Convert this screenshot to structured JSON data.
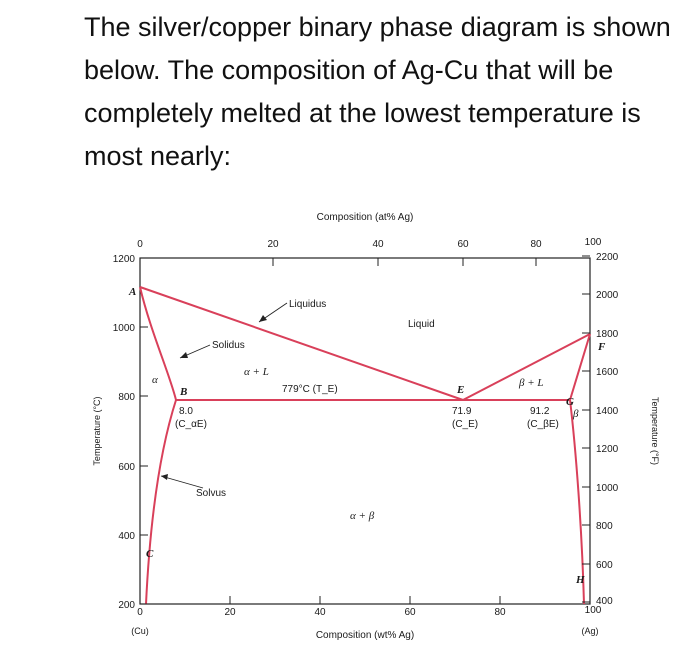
{
  "question": "The silver/copper binary phase diagram is shown below. The composition of Ag-Cu that will be completely melted at the lowest temperature is most nearly:",
  "diagram": {
    "top_axis_title": "Composition (at% Ag)",
    "bottom_axis_title": "Composition (wt% Ag)",
    "left_axis_title": "Temperature (°C)",
    "right_axis_title": "Temperature (°F)",
    "top_ticks": [
      "0",
      "20",
      "40",
      "60",
      "80",
      "100"
    ],
    "bottom_ticks": [
      "0",
      "20",
      "40",
      "60",
      "80",
      "100"
    ],
    "left_ticks": [
      "1200",
      "1000",
      "800",
      "600",
      "400",
      "200"
    ],
    "right_ticks": [
      "2200",
      "2000",
      "1800",
      "1600",
      "1400",
      "1200",
      "1000",
      "800",
      "600",
      "400"
    ],
    "left_end_label": "(Cu)",
    "right_end_label": "(Ag)",
    "regions": {
      "liquid": "Liquid",
      "alpha": "α",
      "alpha_plus_l": "α + L",
      "beta_plus_l": "β + L",
      "alpha_plus_beta": "α + β",
      "beta": "β"
    },
    "callouts": {
      "liquidus": "Liquidus",
      "solidus": "Solidus",
      "solvus": "Solvus"
    },
    "points": {
      "A": "A",
      "B": "B",
      "C": "C",
      "E": "E",
      "F": "F",
      "G": "G",
      "H": "H"
    },
    "eutectic_temp_label": "779°C (T_E)",
    "compositions": {
      "b_value": "8.0",
      "b_sub": "(C_αE)",
      "e_value": "71.9",
      "e_sub": "(C_E)",
      "g_value": "91.2",
      "g_sub": "(C_βE)"
    },
    "line_color": "#d9405a"
  }
}
